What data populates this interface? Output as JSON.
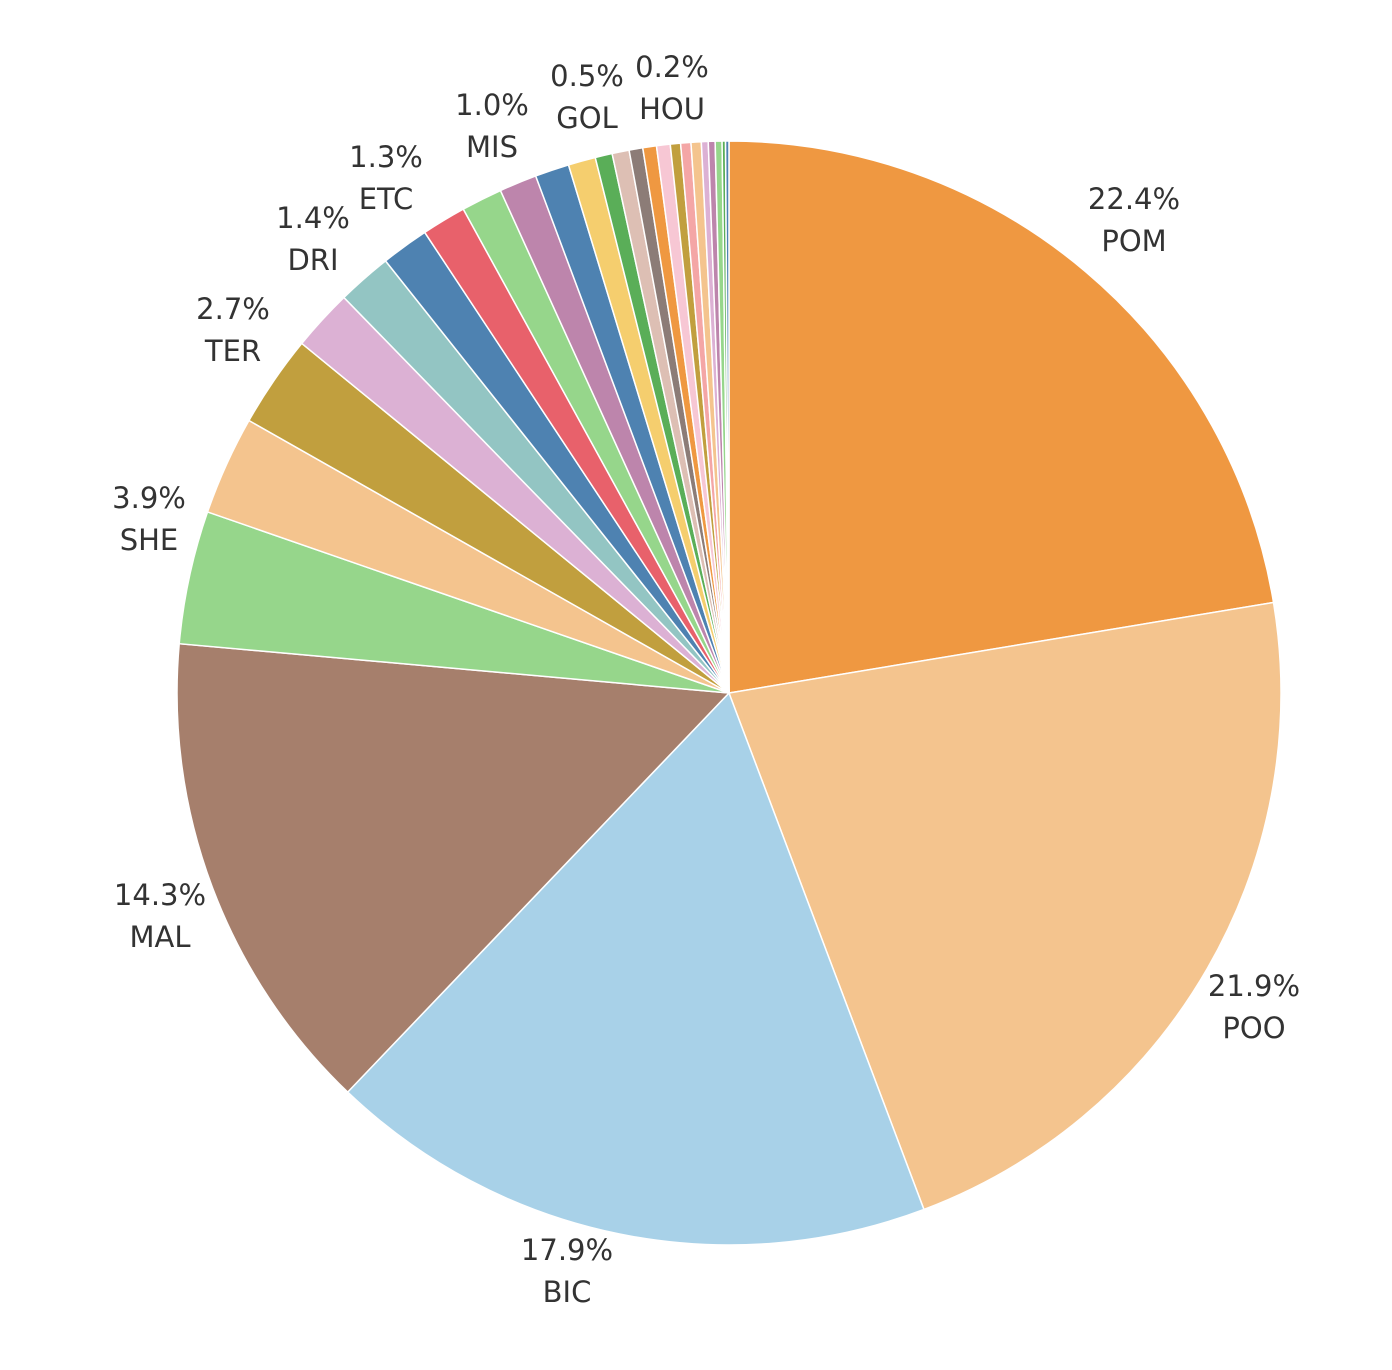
{
  "chart_data": {
    "type": "pie",
    "start": "12 o'clock, clockwise",
    "slices": [
      {
        "name": "POM",
        "value": 22.4,
        "label": "22.4%",
        "color": "#EF9841",
        "show_label": true
      },
      {
        "name": "POO",
        "value": 21.9,
        "label": "21.9%",
        "color": "#F4C48E",
        "show_label": true
      },
      {
        "name": "BIC",
        "value": 17.9,
        "label": "17.9%",
        "color": "#A8D1E8",
        "show_label": true
      },
      {
        "name": "MAL",
        "value": 14.3,
        "label": "14.3%",
        "color": "#A67F6C",
        "show_label": true
      },
      {
        "name": "SHE",
        "value": 3.9,
        "label": "3.9%",
        "color": "#96D68B",
        "show_label": true
      },
      {
        "name": "",
        "value": 2.9,
        "label": "",
        "color": "#F4C48E",
        "show_label": false
      },
      {
        "name": "TER",
        "value": 2.7,
        "label": "2.7%",
        "color": "#C19F3E",
        "show_label": true
      },
      {
        "name": "",
        "value": 1.8,
        "label": "",
        "color": "#DCB1D4",
        "show_label": false
      },
      {
        "name": "",
        "value": 1.6,
        "label": "",
        "color": "#93C5C3",
        "show_label": false
      },
      {
        "name": "DRI",
        "value": 1.4,
        "label": "1.4%",
        "color": "#4E82B1",
        "show_label": true
      },
      {
        "name": "ETC",
        "value": 1.3,
        "label": "1.3%",
        "color": "#E8616B",
        "show_label": true
      },
      {
        "name": "",
        "value": 1.2,
        "label": "",
        "color": "#96D68B",
        "show_label": false
      },
      {
        "name": "",
        "value": 1.1,
        "label": "",
        "color": "#BD85AC",
        "show_label": false
      },
      {
        "name": "MIS",
        "value": 1.0,
        "label": "1.0%",
        "color": "#4E82B1",
        "show_label": true
      },
      {
        "name": "",
        "value": 0.8,
        "label": "",
        "color": "#F5CE6E",
        "show_label": false
      },
      {
        "name": "GOL",
        "value": 0.5,
        "label": "0.5%",
        "color": "#5AAE58",
        "show_label": true
      },
      {
        "name": "",
        "value": 0.5,
        "label": "",
        "color": "#DDBFB4",
        "show_label": false
      },
      {
        "name": "",
        "value": 0.4,
        "label": "",
        "color": "#8C7C77",
        "show_label": false
      },
      {
        "name": "",
        "value": 0.4,
        "label": "",
        "color": "#EF9841",
        "show_label": false
      },
      {
        "name": "",
        "value": 0.4,
        "label": "",
        "color": "#F7C7D4",
        "show_label": false
      },
      {
        "name": "",
        "value": 0.3,
        "label": "",
        "color": "#C19F3E",
        "show_label": false
      },
      {
        "name": "",
        "value": 0.3,
        "label": "",
        "color": "#F4A6A6",
        "show_label": false
      },
      {
        "name": "",
        "value": 0.3,
        "label": "",
        "color": "#F4C48E",
        "show_label": false
      },
      {
        "name": "",
        "value": 0.2,
        "label": "",
        "color": "#DCB1D4",
        "show_label": false
      },
      {
        "name": "",
        "value": 0.2,
        "label": "",
        "color": "#BD85AC",
        "show_label": false
      },
      {
        "name": "HOU",
        "value": 0.2,
        "label": "0.2%",
        "color": "#96D68B",
        "show_label": true
      },
      {
        "name": "",
        "value": 0.1,
        "label": "",
        "color": "#5AAE58",
        "show_label": false
      },
      {
        "name": "",
        "value": 0.1,
        "label": "",
        "color": "#4E82B1",
        "show_label": false
      }
    ]
  }
}
